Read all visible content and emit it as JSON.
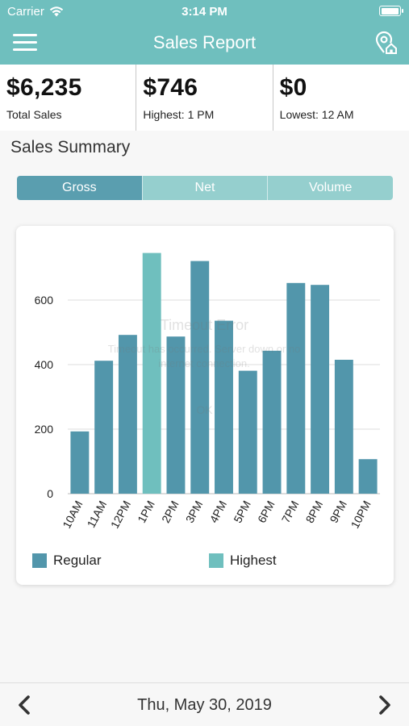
{
  "status_bar": {
    "carrier": "Carrier",
    "time": "3:14 PM",
    "battery_level": 1.0,
    "wifi_icon": "wifi-icon"
  },
  "nav": {
    "title": "Sales Report",
    "menu_icon": "hamburger-menu-icon",
    "store_icon": "location-store-icon"
  },
  "stats": [
    {
      "value": "$6,235",
      "label": "Total Sales"
    },
    {
      "value": "$746",
      "label": "Highest: 1 PM"
    },
    {
      "value": "$0",
      "label": "Lowest: 12 AM"
    }
  ],
  "section_title": "Sales Summary",
  "segments": {
    "items": [
      "Gross",
      "Net",
      "Volume"
    ],
    "selected": "Gross"
  },
  "overlay": {
    "title": "Timeout Error",
    "message": "Timeout has occurred. Server down or no internet connection.",
    "button": "OK"
  },
  "chart_data": {
    "type": "bar",
    "categories": [
      "10AM",
      "11AM",
      "12PM",
      "1PM",
      "2PM",
      "3PM",
      "4PM",
      "5PM",
      "6PM",
      "7PM",
      "8PM",
      "9PM",
      "10PM"
    ],
    "series": [
      {
        "name": "Regular",
        "values": [
          193,
          412,
          492,
          0,
          487,
          721,
          536,
          381,
          443,
          653,
          647,
          415,
          107
        ]
      },
      {
        "name": "Highest",
        "values": [
          0,
          0,
          0,
          746,
          0,
          0,
          0,
          0,
          0,
          0,
          0,
          0,
          0
        ]
      }
    ],
    "yticks": [
      0,
      200,
      400,
      600
    ],
    "ylim": [
      0,
      800
    ],
    "grid": true,
    "legend_position": "bottom",
    "colors": {
      "Regular": "#5296ab",
      "Highest": "#6fbfbe"
    }
  },
  "footer": {
    "date": "Thu, May 30, 2019",
    "prev_icon": "chevron-left-icon",
    "next_icon": "chevron-right-icon"
  },
  "colors": {
    "header": "#6fbfbe",
    "segment_active": "#5a9eaf",
    "segment_inactive": "#95cfce"
  }
}
